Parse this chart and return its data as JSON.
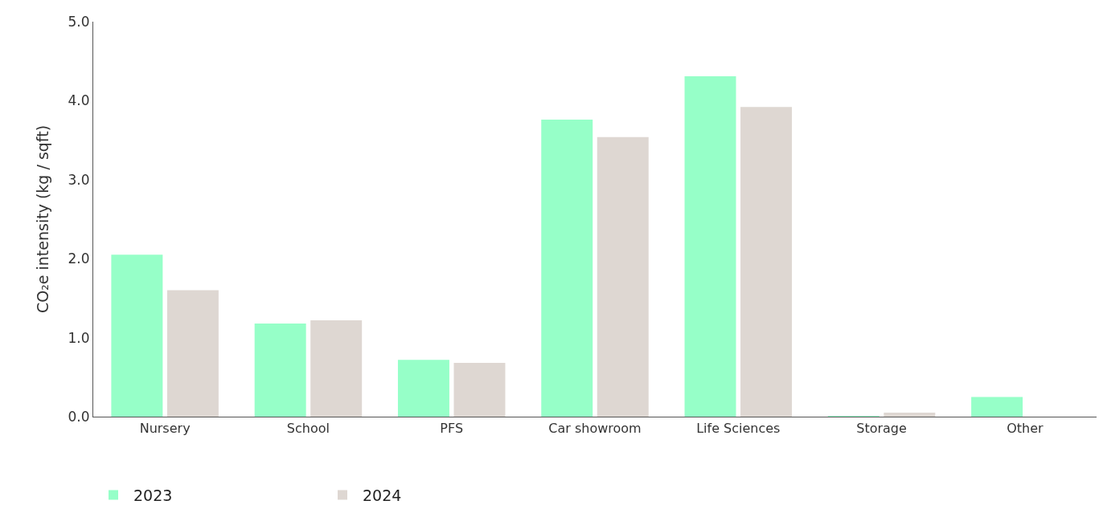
{
  "chart_data": {
    "type": "bar",
    "ylabel": "CO₂e intensity (kg / sqft)",
    "categories": [
      "Nursery",
      "School",
      "PFS",
      "Car showroom",
      "Life Sciences",
      "Storage",
      "Other"
    ],
    "series": [
      {
        "name": "2023",
        "color": "#96ffc8",
        "values": [
          2.05,
          1.18,
          0.72,
          3.76,
          4.31,
          0.01,
          0.25
        ]
      },
      {
        "name": "2024",
        "color": "#ded7d2",
        "values": [
          1.6,
          1.22,
          0.68,
          3.54,
          3.92,
          0.05,
          0
        ]
      }
    ],
    "ylim": [
      0,
      5
    ],
    "yticks": [
      {
        "value": 0,
        "label": "0.0"
      },
      {
        "value": 1,
        "label": "1.0"
      },
      {
        "value": 2,
        "label": "2.0"
      },
      {
        "value": 3,
        "label": "3.0"
      },
      {
        "value": 4,
        "label": "4.0"
      },
      {
        "value": 5,
        "label": "5.0"
      }
    ],
    "grid": false,
    "legend": "bottom left"
  }
}
